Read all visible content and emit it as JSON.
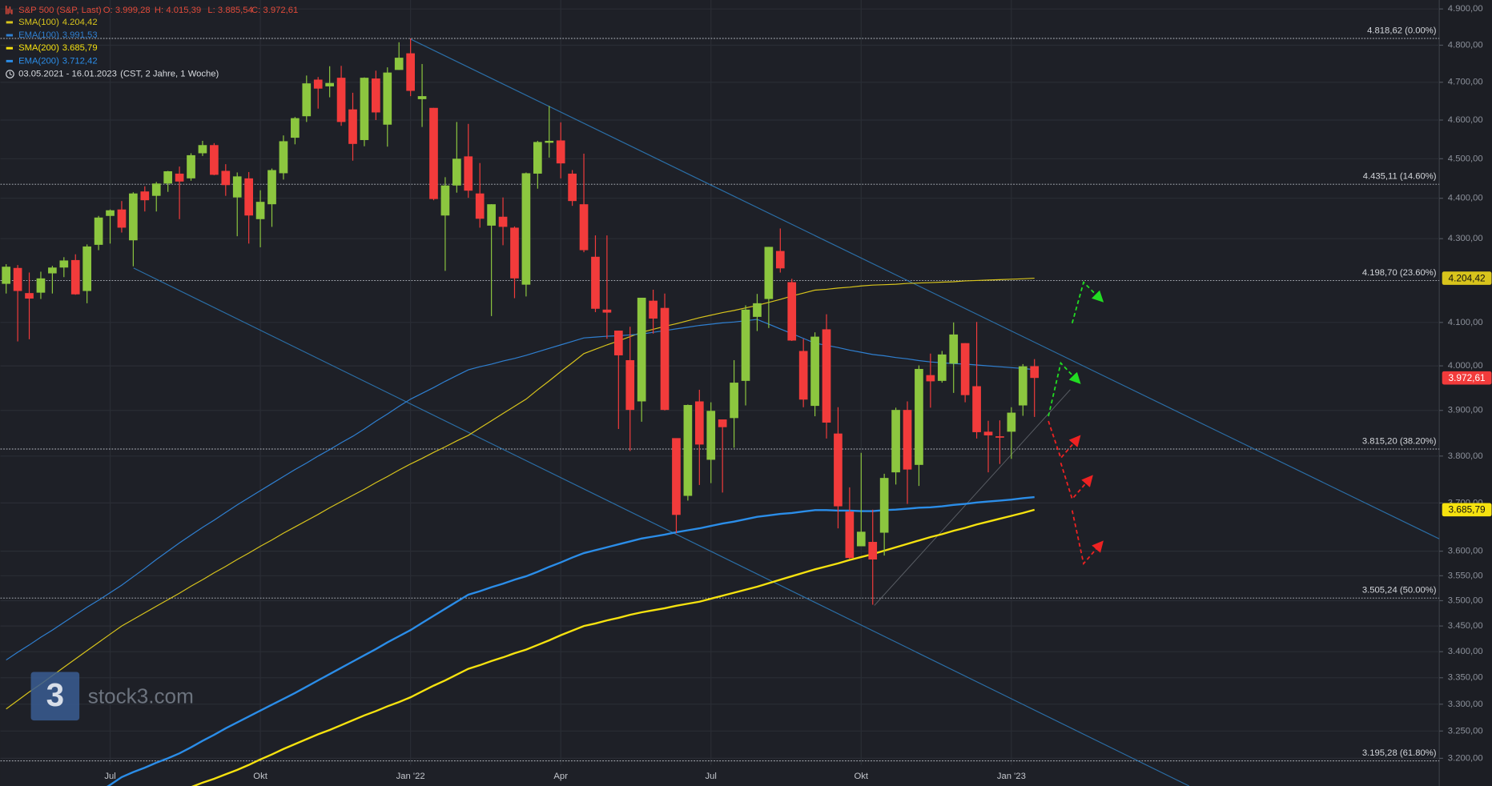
{
  "chart_data": {
    "type": "candlestick",
    "title": "S&P 500 (S&P, Last)",
    "header_values": [
      "O: 3.999,28",
      "H: 4.015,39",
      "L: 3.885,54",
      "C: 3.972,61"
    ],
    "period": "03.05.2021 - 16.01.2023",
    "timeframe": "(CST, 2 Jahre, 1 Woche)",
    "watermark": "stock3.com",
    "watermark_logo": "3",
    "log_scale": true,
    "grid": true,
    "up_color": "#8cc63f",
    "down_color": "#f23b3b",
    "close_label": "3.972,61",
    "categories": [
      null,
      null,
      null,
      null,
      null,
      null,
      null,
      null,
      null,
      "Jul",
      null,
      null,
      null,
      null,
      null,
      null,
      null,
      null,
      null,
      null,
      null,
      null,
      "Okt",
      null,
      null,
      null,
      null,
      null,
      null,
      null,
      null,
      null,
      null,
      null,
      null,
      "Jan '22",
      null,
      null,
      null,
      null,
      null,
      null,
      null,
      null,
      null,
      null,
      null,
      null,
      "Apr",
      null,
      null,
      null,
      null,
      null,
      null,
      null,
      null,
      null,
      null,
      null,
      null,
      "Jul",
      null,
      null,
      null,
      null,
      null,
      null,
      null,
      null,
      null,
      null,
      null,
      null,
      "Okt",
      null,
      null,
      null,
      null,
      null,
      null,
      null,
      null,
      null,
      null,
      null,
      null,
      "Jan '23",
      null,
      null
    ],
    "open": [
      4191,
      4229,
      4169,
      4170,
      4216,
      4230,
      4248,
      4174,
      4285,
      4356,
      4372,
      4296,
      4417,
      4406,
      4437,
      4462,
      4450,
      4514,
      4535,
      4469,
      4402,
      4450,
      4348,
      4385,
      4463,
      4554,
      4610,
      4707,
      4689,
      4712,
      4628,
      4548,
      4710,
      4588,
      4733,
      4778,
      4655,
      4632,
      4357,
      4432,
      4506,
      4412,
      4332,
      4354,
      4327,
      4189,
      4462,
      4541,
      4547,
      4462,
      4385,
      4256,
      4130,
      4081,
      4013,
      3920,
      4151,
      4134,
      3839,
      3715,
      3920,
      3792,
      3880,
      3883,
      3966,
      4113,
      4155,
      4270,
      4195,
      4034,
      3910,
      4084,
      3849,
      3682,
      3610,
      3619,
      3638,
      3765,
      3901,
      3781,
      3979,
      3966,
      4005,
      4052,
      3954,
      3853,
      3843,
      3853,
      3911,
      3999.28
    ],
    "high": [
      4238,
      4236,
      4218,
      4220,
      4234,
      4255,
      4262,
      4286,
      4356,
      4372,
      4393,
      4415,
      4430,
      4441,
      4469,
      4480,
      4514,
      4546,
      4540,
      4486,
      4465,
      4466,
      4420,
      4475,
      4560,
      4608,
      4718,
      4714,
      4743,
      4744,
      4672,
      4713,
      4731,
      4740,
      4808,
      4818.62,
      4749,
      4632,
      4453,
      4595,
      4590,
      4489,
      4385,
      4402,
      4330,
      4465,
      4546,
      4637,
      4594,
      4471,
      4513,
      4308,
      4308,
      4081,
      4090,
      4158,
      4177,
      4168,
      3838,
      3913,
      3946,
      3918,
      3880,
      4013,
      4140,
      4167,
      4280,
      4325,
      4203,
      4062,
      4077,
      4119,
      3907,
      3733,
      3807,
      3686,
      3762,
      3906,
      3920,
      4001,
      4028,
      4034,
      4100,
      4052,
      4101,
      3877,
      3878,
      3907,
      4004,
      4015.39
    ],
    "low": [
      4168,
      4056,
      4061,
      4155,
      4168,
      4207,
      4165,
      4145,
      4272,
      4288,
      4315,
      4233,
      4367,
      4367,
      4416,
      4348,
      4444,
      4507,
      4458,
      4406,
      4306,
      4288,
      4279,
      4329,
      4447,
      4537,
      4595,
      4630,
      4660,
      4585,
      4495,
      4532,
      4600,
      4531,
      4733,
      4663,
      4582,
      4395,
      4222,
      4414,
      4401,
      4327,
      4115,
      4284,
      4157,
      4161,
      4424,
      4503,
      4450,
      4381,
      4267,
      4124,
      4062,
      3859,
      3811,
      3875,
      4074,
      3900,
      3637,
      3705,
      3738,
      3742,
      3722,
      3818,
      3911,
      4080,
      4087,
      4218,
      4057,
      3907,
      3887,
      3838,
      3647,
      3584,
      3610,
      3492,
      3591,
      3739,
      3698,
      3736,
      3906,
      3962,
      3939,
      3918,
      3838,
      3765,
      3783,
      3794,
      3888,
      3885.54
    ],
    "close": [
      4232,
      4174,
      4156,
      4204,
      4230,
      4247,
      4166,
      4281,
      4352,
      4370,
      4327,
      4412,
      4395,
      4437,
      4468,
      4442,
      4509,
      4535,
      4459,
      4433,
      4455,
      4357,
      4391,
      4471,
      4545,
      4605,
      4697,
      4683,
      4698,
      4595,
      4538,
      4712,
      4620,
      4726,
      4766,
      4677,
      4663,
      4398,
      4432,
      4500,
      4419,
      4349,
      4385,
      4329,
      4204,
      4463,
      4543,
      4546,
      4488,
      4393,
      4272,
      4132,
      4123,
      4024,
      3901,
      4158,
      4109,
      3901,
      3675,
      3912,
      3825,
      3899,
      3863,
      3962,
      4130,
      4145,
      4280,
      4228,
      4058,
      3924,
      4067,
      3873,
      3693,
      3586,
      3640,
      3583,
      3753,
      3901,
      3771,
      3993,
      3965,
      4026,
      4072,
      3934,
      3852,
      3845,
      3840,
      3895,
      3999,
      3972.61
    ],
    "series": [
      {
        "name": "SMA(100)",
        "color": "#d8c41c",
        "legend_value": "4.204,42",
        "tag": true,
        "values": [
          3291,
          3307,
          3323,
          3338,
          3354,
          3370,
          3386,
          3402,
          3418,
          3434,
          3450,
          3463,
          3476,
          3489,
          3502,
          3515,
          3529,
          3542,
          3556,
          3569,
          3583,
          3596,
          3610,
          3623,
          3637,
          3650,
          3663,
          3676,
          3690,
          3703,
          3716,
          3729,
          3743,
          3756,
          3770,
          3783,
          3795,
          3808,
          3820,
          3833,
          3845,
          3861,
          3877,
          3893,
          3909,
          3925,
          3946,
          3966,
          3987,
          4007,
          4028,
          4038,
          4048,
          4057,
          4067,
          4077,
          4084,
          4091,
          4097,
          4104,
          4111,
          4117,
          4123,
          4128,
          4134,
          4140,
          4147,
          4154,
          4162,
          4169,
          4176,
          4178,
          4181,
          4183,
          4186,
          4188,
          4189,
          4190,
          4192,
          4193,
          4194,
          4195,
          4196,
          4198,
          4199,
          4200,
          4201,
          4202,
          4203,
          4204.42
        ]
      },
      {
        "name": "EMA(100)",
        "color": "#2f7fd0",
        "legend_value": "3.991,53",
        "tag": false,
        "values": [
          3384,
          3399,
          3413,
          3428,
          3442,
          3457,
          3472,
          3487,
          3501,
          3516,
          3531,
          3548,
          3565,
          3583,
          3600,
          3617,
          3633,
          3649,
          3664,
          3680,
          3696,
          3711,
          3726,
          3741,
          3756,
          3771,
          3785,
          3800,
          3814,
          3829,
          3843,
          3859,
          3876,
          3892,
          3909,
          3925,
          3938,
          3951,
          3965,
          3978,
          3991,
          3998,
          4004,
          4011,
          4017,
          4024,
          4032,
          4040,
          4048,
          4056,
          4064,
          4066,
          4068,
          4069,
          4071,
          4073,
          4077,
          4081,
          4085,
          4089,
          4093,
          4096,
          4099,
          4101,
          4104,
          4107,
          4096,
          4085,
          4074,
          4063,
          4052,
          4047,
          4042,
          4036,
          4031,
          4026,
          4023,
          4019,
          4016,
          4012,
          4009,
          4007,
          4005,
          4004,
          4002,
          4000,
          3998,
          3996,
          3994,
          3991.53
        ]
      },
      {
        "name": "SMA(200)",
        "color": "#f6e20f",
        "legend_value": "3.685,79",
        "tag": true,
        "values": [
          null,
          null,
          null,
          null,
          null,
          null,
          null,
          null,
          null,
          null,
          null,
          null,
          null,
          null,
          null,
          3140,
          3148,
          3156,
          3163,
          3171,
          3179,
          3188,
          3198,
          3207,
          3217,
          3226,
          3235,
          3244,
          3252,
          3261,
          3270,
          3279,
          3287,
          3296,
          3304,
          3313,
          3324,
          3335,
          3345,
          3356,
          3367,
          3374,
          3382,
          3389,
          3397,
          3404,
          3413,
          3422,
          3432,
          3441,
          3450,
          3455,
          3461,
          3466,
          3472,
          3477,
          3481,
          3485,
          3490,
          3494,
          3498,
          3504,
          3510,
          3516,
          3522,
          3528,
          3535,
          3542,
          3549,
          3556,
          3563,
          3569,
          3575,
          3582,
          3588,
          3594,
          3601,
          3608,
          3615,
          3622,
          3629,
          3635,
          3642,
          3648,
          3655,
          3661,
          3667,
          3673,
          3679,
          3685.79
        ]
      },
      {
        "name": "EMA(200)",
        "color": "#2b8de8",
        "legend_value": "3.712,42",
        "tag": false,
        "values": [
          null,
          null,
          null,
          null,
          null,
          3098,
          3112,
          3125,
          3139,
          3152,
          3166,
          3175,
          3183,
          3192,
          3200,
          3209,
          3220,
          3232,
          3243,
          3255,
          3266,
          3277,
          3288,
          3299,
          3310,
          3321,
          3333,
          3345,
          3357,
          3369,
          3381,
          3393,
          3405,
          3418,
          3430,
          3442,
          3456,
          3470,
          3484,
          3498,
          3512,
          3519,
          3527,
          3534,
          3542,
          3549,
          3558,
          3568,
          3577,
          3587,
          3596,
          3602,
          3608,
          3614,
          3620,
          3626,
          3630,
          3634,
          3639,
          3643,
          3647,
          3652,
          3657,
          3661,
          3666,
          3671,
          3674,
          3677,
          3679,
          3682,
          3685,
          3685,
          3684,
          3684,
          3683,
          3683,
          3685,
          3686,
          3688,
          3690,
          3691,
          3693,
          3696,
          3698,
          3701,
          3703,
          3705,
          3707,
          3710,
          3712.42
        ]
      }
    ],
    "levels": [
      {
        "value": 4818.62,
        "label": "4.818,62 (0.00%)"
      },
      {
        "value": 4435.11,
        "label": "4.435,11 (14.60%)"
      },
      {
        "value": 4198.7,
        "label": "4.198,70 (23.60%)"
      },
      {
        "value": 3815.2,
        "label": "3.815,20 (38.20%)"
      },
      {
        "value": 3505.24,
        "label": "3.505,24 (50.00%)"
      },
      {
        "value": 3195.28,
        "label": "3.195,28 (61.80%)"
      }
    ],
    "ylim": [
      3150,
      4925
    ],
    "yticks": [
      {
        "value": 3200,
        "label": "3.200,00"
      },
      {
        "value": 3250,
        "label": "3.250,00"
      },
      {
        "value": 3300,
        "label": "3.300,00"
      },
      {
        "value": 3350,
        "label": "3.350,00"
      },
      {
        "value": 3400,
        "label": "3.400,00"
      },
      {
        "value": 3450,
        "label": "3.450,00"
      },
      {
        "value": 3500,
        "label": "3.500,00"
      },
      {
        "value": 3550,
        "label": "3.550,00"
      },
      {
        "value": 3600,
        "label": "3.600,00"
      },
      {
        "value": 3700,
        "label": "3.700,00"
      },
      {
        "value": 3800,
        "label": "3.800,00"
      },
      {
        "value": 3900,
        "label": "3.900,00"
      },
      {
        "value": 4000,
        "label": "4.000,00"
      },
      {
        "value": 4100,
        "label": "4.100,00"
      },
      {
        "value": 4300,
        "label": "4.300,00"
      },
      {
        "value": 4400,
        "label": "4.400,00"
      },
      {
        "value": 4500,
        "label": "4.500,00"
      },
      {
        "value": 4600,
        "label": "4.600,00"
      },
      {
        "value": 4700,
        "label": "4.700,00"
      },
      {
        "value": 4800,
        "label": "4.800,00"
      },
      {
        "value": 4900,
        "label": "4.900,00"
      }
    ]
  }
}
